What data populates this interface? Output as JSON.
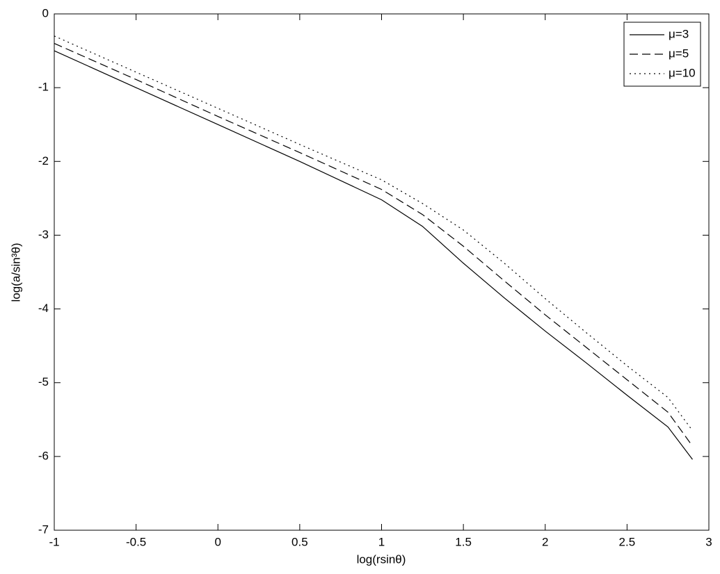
{
  "chart_data": {
    "type": "line",
    "xlabel": "log(rsinθ)",
    "ylabel": "log(a/sin³θ)",
    "x": [
      -1,
      -0.5,
      0,
      0.5,
      1,
      1.25,
      1.5,
      1.75,
      2,
      2.25,
      2.5,
      2.75,
      2.9
    ],
    "series": [
      {
        "name": "μ=3",
        "color": "#000000",
        "dash": "solid",
        "values": [
          -0.5,
          -1.0,
          -1.5,
          -2.0,
          -2.52,
          -2.88,
          -3.38,
          -3.85,
          -4.3,
          -4.73,
          -5.17,
          -5.6,
          -6.04
        ]
      },
      {
        "name": "μ=5",
        "color": "#000000",
        "dash": "dashed",
        "values": [
          -0.4,
          -0.89,
          -1.39,
          -1.88,
          -2.38,
          -2.72,
          -3.15,
          -3.62,
          -4.08,
          -4.52,
          -4.96,
          -5.4,
          -5.86
        ]
      },
      {
        "name": "μ=10",
        "color": "#000000",
        "dash": "dotted",
        "values": [
          -0.3,
          -0.79,
          -1.28,
          -1.77,
          -2.25,
          -2.57,
          -2.93,
          -3.38,
          -3.86,
          -4.32,
          -4.77,
          -5.2,
          -5.65
        ]
      }
    ],
    "xlim": [
      -1,
      3
    ],
    "xticks": [
      -1,
      -0.5,
      0,
      0.5,
      1,
      1.5,
      2,
      2.5,
      3
    ],
    "ylim": [
      -7,
      0
    ],
    "yticks": [
      -7,
      -6,
      -5,
      -4,
      -3,
      -2,
      -1,
      0
    ],
    "grid": false,
    "legend": "top-right"
  }
}
